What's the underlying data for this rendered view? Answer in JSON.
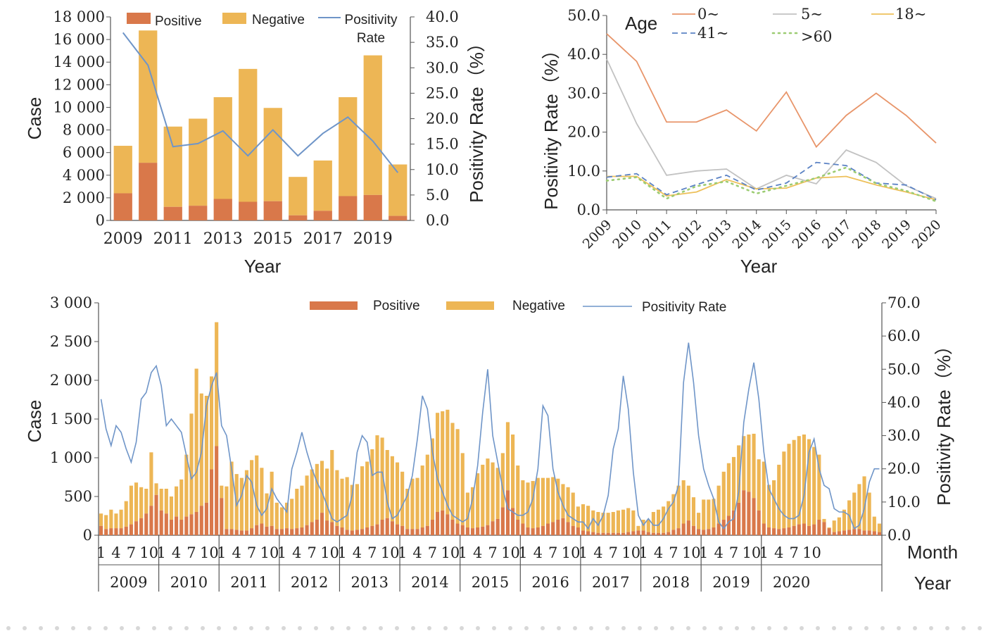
{
  "colors": {
    "positive": "#d9784a",
    "negative": "#edb655",
    "rate": "#6f95c8",
    "axis": "#555555",
    "age0": "#e8956a",
    "age5": "#c2c2c2",
    "age18": "#edc05a",
    "age41": "#5b82c4",
    "age60": "#9ccc72"
  },
  "chart_data": [
    {
      "type": "bar",
      "stacked": true,
      "categories": [
        "2009",
        "2010",
        "2011",
        "2012",
        "2013",
        "2014",
        "2015",
        "2016",
        "2017",
        "2018",
        "2019",
        "2020"
      ],
      "x_tick_labels": [
        "2009",
        "2011",
        "2013",
        "2015",
        "2017",
        "2019"
      ],
      "series": [
        {
          "name": "Positive",
          "values": [
            2400,
            5100,
            1200,
            1300,
            1900,
            1650,
            1700,
            450,
            850,
            2150,
            2250,
            400
          ]
        },
        {
          "name": "Negative",
          "values": [
            4200,
            11700,
            7100,
            7700,
            9000,
            11750,
            8250,
            3400,
            4450,
            8750,
            12350,
            4550
          ]
        }
      ],
      "line_series": {
        "name": "Positivity Rate",
        "axis": "right",
        "values": [
          36.9,
          30.5,
          14.5,
          15.1,
          17.6,
          12.7,
          17.8,
          12.7,
          17.1,
          20.3,
          15.6,
          9.4
        ]
      },
      "ylabel": "Case",
      "ylabel_right": "Positivity Rate（%）",
      "xlabel": "Year",
      "ylim": [
        0,
        18000
      ],
      "y2lim": [
        0,
        40
      ],
      "y_ticks": [
        "0",
        "2 000",
        "4 000",
        "6 000",
        "8 000",
        "10 000",
        "12 000",
        "14 000",
        "16 000",
        "18 000"
      ],
      "y2_ticks": [
        "0.0",
        "5.0",
        "10.0",
        "15.0",
        "20.0",
        "25.0",
        "30.0",
        "35.0",
        "40.0"
      ],
      "legend": [
        "Positive",
        "Negative",
        "Positivity Rate"
      ],
      "legend_placement": "top"
    },
    {
      "type": "line",
      "x": [
        "2009",
        "2010",
        "2011",
        "2012",
        "2013",
        "2014",
        "2015",
        "2016",
        "2017",
        "2018",
        "2019",
        "2020"
      ],
      "legend_title": "Age",
      "series": [
        {
          "name": "0~",
          "values": [
            45.3,
            38.2,
            22.6,
            22.6,
            25.7,
            20.3,
            30.3,
            16.2,
            24.3,
            30.0,
            24.3,
            17.2
          ]
        },
        {
          "name": "5~",
          "values": [
            38.8,
            22.2,
            8.9,
            10.0,
            10.5,
            5.4,
            8.9,
            6.7,
            15.4,
            12.2,
            6.2,
            2.9
          ]
        },
        {
          "name": "18~",
          "values": [
            8.6,
            8.6,
            3.6,
            4.6,
            7.8,
            5.4,
            5.6,
            8.2,
            8.6,
            6.4,
            4.6,
            2.6
          ]
        },
        {
          "name": "41~",
          "values": [
            8.4,
            9.3,
            3.9,
            6.5,
            8.9,
            5.1,
            6.9,
            12.2,
            11.4,
            6.9,
            6.4,
            2.6
          ]
        },
        {
          "name": ">60",
          "values": [
            7.5,
            8.4,
            2.9,
            6.1,
            7.3,
            4.2,
            6.2,
            8.2,
            10.9,
            6.8,
            4.9,
            2.2
          ]
        }
      ],
      "ylabel": "Positivity Rate（%）",
      "xlabel": "Year",
      "ylim": [
        0,
        50
      ],
      "y_ticks": [
        "0.0",
        "10.0",
        "20.0",
        "30.0",
        "40.0",
        "50.0"
      ],
      "legend_placement": "top"
    },
    {
      "type": "bar",
      "stacked": true,
      "years": [
        "2009",
        "2010",
        "2011",
        "2012",
        "2013",
        "2014",
        "2015",
        "2016",
        "2017",
        "2018",
        "2019",
        "2020"
      ],
      "month_tick_labels": [
        "1",
        "4",
        "7",
        "10"
      ],
      "series": [
        {
          "name": "Positive",
          "values": [
            120,
            80,
            90,
            90,
            90,
            110,
            140,
            180,
            220,
            280,
            380,
            520,
            320,
            280,
            200,
            240,
            200,
            240,
            270,
            300,
            380,
            420,
            850,
            1150,
            480,
            80,
            80,
            70,
            60,
            60,
            90,
            130,
            150,
            110,
            120,
            80,
            80,
            90,
            80,
            90,
            100,
            130,
            170,
            200,
            290,
            190,
            170,
            120,
            100,
            70,
            60,
            70,
            80,
            100,
            120,
            140,
            200,
            220,
            180,
            140,
            120,
            80,
            80,
            80,
            100,
            120,
            200,
            300,
            320,
            270,
            200,
            150,
            130,
            100,
            90,
            100,
            110,
            130,
            180,
            210,
            360,
            580,
            350,
            200,
            150,
            100,
            90,
            100,
            120,
            150,
            170,
            200,
            220,
            170,
            120,
            100,
            60,
            50,
            40,
            30,
            30,
            30,
            30,
            30,
            30,
            40,
            50,
            60,
            60,
            40,
            30,
            30,
            30,
            40,
            70,
            90,
            150,
            190,
            120,
            80,
            70,
            80,
            100,
            150,
            200,
            250,
            320,
            420,
            580,
            560,
            480,
            320,
            150,
            100,
            90,
            80,
            90,
            100,
            120,
            140,
            150,
            120,
            140,
            200,
            170,
            90,
            40,
            50,
            60,
            70,
            80,
            80,
            60,
            60,
            50,
            40
          ]
        },
        {
          "name": "Negative",
          "values": [
            160,
            180,
            240,
            190,
            240,
            330,
            500,
            500,
            400,
            320,
            690,
            150,
            280,
            320,
            300,
            390,
            520,
            800,
            1300,
            1850,
            1450,
            1380,
            1200,
            1600,
            160,
            550,
            870,
            720,
            680,
            780,
            880,
            900,
            720,
            430,
            700,
            340,
            280,
            330,
            390,
            510,
            540,
            640,
            680,
            720,
            670,
            670,
            930,
            720,
            630,
            680,
            590,
            590,
            810,
            850,
            990,
            1150,
            1060,
            880,
            840,
            800,
            700,
            520,
            650,
            660,
            800,
            920,
            1050,
            1280,
            1280,
            1350,
            1250,
            1220,
            930,
            450,
            530,
            700,
            800,
            860,
            760,
            660,
            700,
            880,
            950,
            700,
            560,
            580,
            610,
            640,
            620,
            590,
            580,
            530,
            440,
            450,
            430,
            270,
            340,
            330,
            280,
            270,
            260,
            260,
            270,
            290,
            300,
            310,
            270,
            60,
            140,
            160,
            270,
            300,
            340,
            400,
            460,
            550,
            560,
            450,
            370,
            210,
            390,
            380,
            370,
            490,
            620,
            680,
            690,
            740,
            700,
            740,
            830,
            660,
            800,
            550,
            620,
            830,
            990,
            1080,
            1110,
            1140,
            1150,
            1120,
            1000,
            840,
            40,
            10,
            150,
            180,
            270,
            380,
            470,
            580,
            700,
            490,
            190,
            110
          ]
        }
      ],
      "line_series": {
        "name": "Positivity Rate",
        "axis": "right",
        "values": [
          41,
          32,
          27,
          33,
          31,
          26,
          22,
          28,
          41,
          43,
          49,
          51,
          45,
          33,
          35,
          33,
          31,
          24,
          17,
          19,
          25,
          39,
          45,
          49,
          33,
          30,
          20,
          9,
          12,
          18,
          16,
          9,
          6,
          8,
          14,
          11,
          9,
          7,
          20,
          25,
          31,
          25,
          20,
          16,
          13,
          9,
          5,
          4,
          5,
          6,
          12,
          25,
          30,
          28,
          18,
          19,
          19,
          10,
          5,
          6,
          9,
          12,
          18,
          29,
          42,
          38,
          25,
          17,
          13,
          9,
          6,
          5,
          4,
          5,
          11,
          21,
          37,
          50,
          30,
          22,
          14,
          8,
          7,
          6,
          6,
          7,
          11,
          20,
          39,
          36,
          20,
          13,
          9,
          6,
          5,
          4,
          4,
          2,
          5,
          3,
          6,
          12,
          26,
          32,
          48,
          38,
          19,
          6,
          3,
          5,
          3,
          3,
          5,
          8,
          10,
          15,
          46,
          58,
          46,
          30,
          20,
          15,
          11,
          4,
          2,
          4,
          5,
          13,
          34,
          44,
          52,
          41,
          25,
          14,
          11,
          8,
          6,
          5,
          5,
          6,
          12,
          25,
          29,
          20,
          15,
          14,
          8,
          7,
          7,
          6,
          2,
          3,
          8,
          16,
          20,
          20
        ]
      },
      "ylabel": "Case",
      "ylabel_right": "Positivity Rate（%）",
      "xlabel": "Month",
      "xlabel2": "Year",
      "ylim": [
        0,
        3000
      ],
      "y2lim": [
        0,
        70
      ],
      "y_ticks": [
        "0",
        "500",
        "1 000",
        "1 500",
        "2 000",
        "2 500",
        "3 000"
      ],
      "y2_ticks": [
        "0.0",
        "10.0",
        "20.0",
        "30.0",
        "40.0",
        "50.0",
        "60.0",
        "70.0"
      ],
      "legend": [
        "Positive",
        "Negative",
        "Positivity Rate"
      ],
      "legend_placement": "top"
    }
  ]
}
